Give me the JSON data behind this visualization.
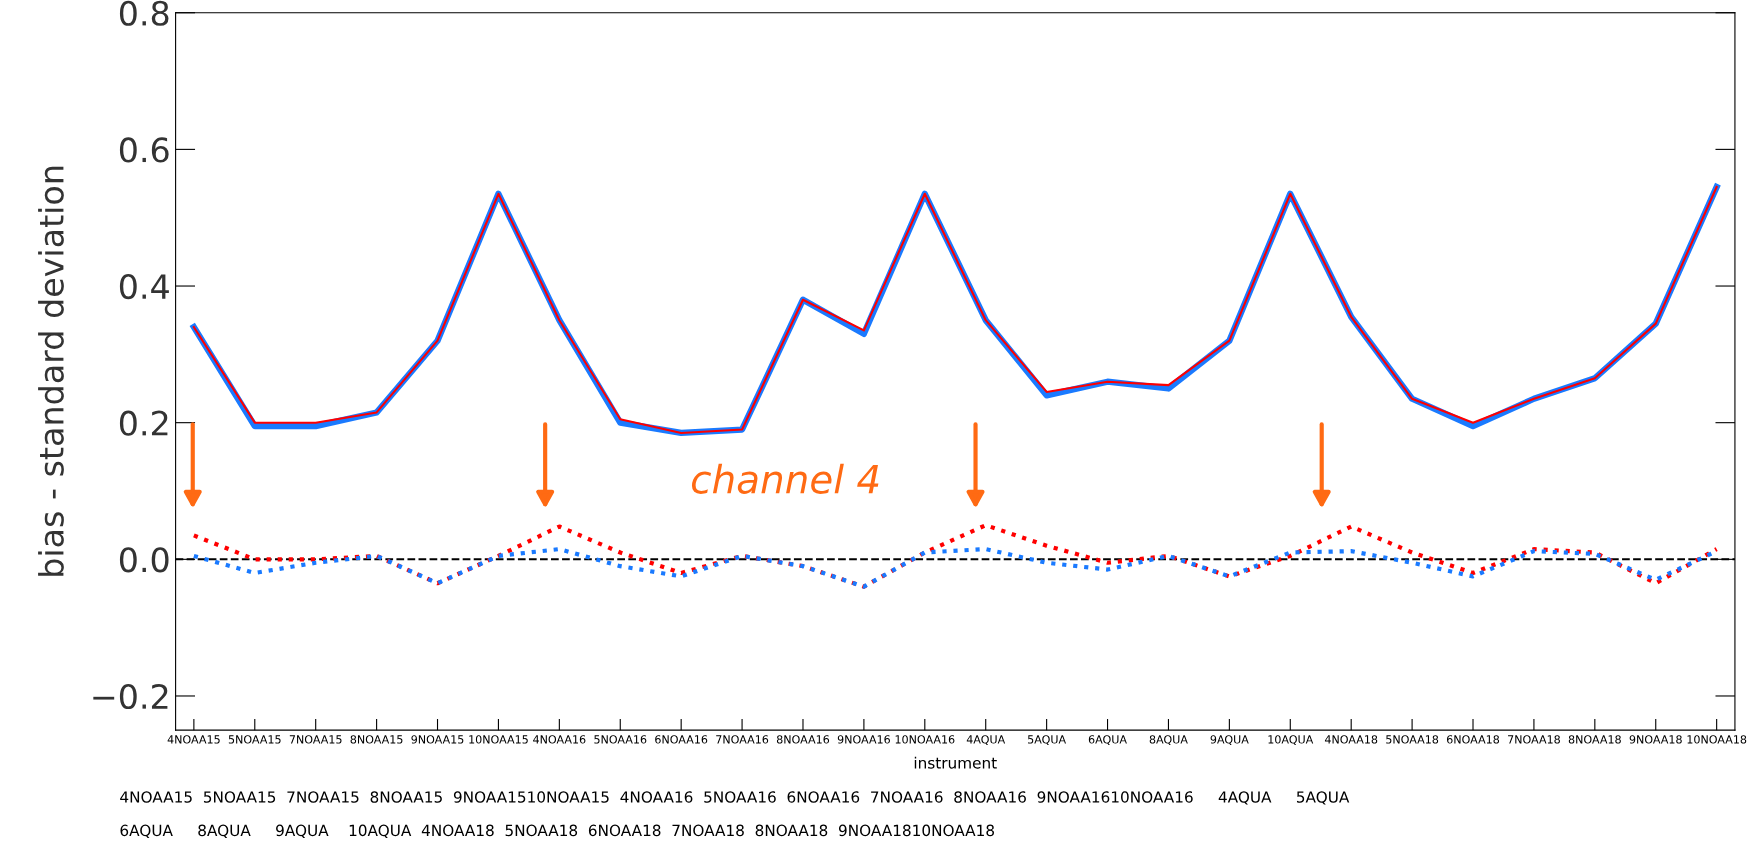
{
  "chart_data": {
    "type": "line",
    "ylabel": "bias - standard deviation",
    "xlabel": "instrument",
    "categories": [
      "4NOAA15",
      "5NOAA15",
      "7NOAA15",
      "8NOAA15",
      "9NOAA15",
      "10NOAA15",
      "4NOAA16",
      "5NOAA16",
      "6NOAA16",
      "7NOAA16",
      "8NOAA16",
      "9NOAA16",
      "10NOAA16",
      "4AQUA",
      "5AQUA",
      "6AQUA",
      "8AQUA",
      "9AQUA",
      "10AQUA",
      "4NOAA18",
      "5NOAA18",
      "6NOAA18",
      "7NOAA18",
      "8NOAA18",
      "9NOAA18",
      "10NOAA18"
    ],
    "series": [
      {
        "color": "#ff0000",
        "line_style": "solid",
        "values": [
          0.34,
          0.2,
          0.2,
          0.215,
          0.32,
          0.535,
          0.35,
          0.205,
          0.185,
          0.19,
          0.38,
          0.335,
          0.535,
          0.35,
          0.245,
          0.26,
          0.255,
          0.32,
          0.535,
          0.355,
          0.235,
          0.2,
          0.235,
          0.265,
          0.345,
          0.545
        ]
      },
      {
        "color": "#1a7aff",
        "line_style": "solid",
        "values": [
          0.34,
          0.195,
          0.195,
          0.215,
          0.32,
          0.535,
          0.35,
          0.2,
          0.185,
          0.19,
          0.38,
          0.33,
          0.535,
          0.35,
          0.24,
          0.26,
          0.25,
          0.32,
          0.535,
          0.355,
          0.235,
          0.195,
          0.235,
          0.265,
          0.345,
          0.545
        ]
      },
      {
        "color": "#ff0000",
        "line_style": "dotted",
        "values": [
          0.035,
          0.0,
          0.0,
          0.005,
          -0.035,
          0.005,
          0.048,
          0.01,
          -0.02,
          0.005,
          -0.01,
          -0.04,
          0.01,
          0.05,
          0.02,
          -0.005,
          0.005,
          -0.025,
          0.005,
          0.048,
          0.01,
          -0.02,
          0.015,
          0.01,
          -0.035,
          0.015
        ]
      },
      {
        "color": "#1a7aff",
        "line_style": "dotted",
        "values": [
          0.005,
          -0.02,
          -0.005,
          0.005,
          -0.035,
          0.005,
          0.015,
          -0.01,
          -0.025,
          0.005,
          -0.01,
          -0.04,
          0.01,
          0.015,
          -0.005,
          -0.015,
          0.005,
          -0.025,
          0.01,
          0.012,
          -0.005,
          -0.025,
          0.012,
          0.008,
          -0.03,
          0.012
        ]
      }
    ],
    "ylim": [
      -0.25,
      0.8
    ],
    "yticks": [
      {
        "value": -0.2,
        "label": "−0.2"
      },
      {
        "value": 0.0,
        "label": "0.0"
      },
      {
        "value": 0.2,
        "label": "0.2"
      },
      {
        "value": 0.4,
        "label": "0.4"
      },
      {
        "value": 0.6,
        "label": "0.6"
      },
      {
        "value": 0.8,
        "label": "0.8"
      }
    ],
    "ref_lines": [
      {
        "axis": "y",
        "value": 0,
        "color": "#000000",
        "line_style": "dashed"
      }
    ],
    "grid": false,
    "legend": false,
    "marker": "none",
    "annotations": [
      "channel 4",
      "4NOAA15  5NOAA15  7NOAA15  8NOAA15  9NOAA1510NOAA15  4NOAA16  5NOAA16  6NOAA16  7NOAA16  8NOAA16  9NOAA1610NOAA16     4AQUA     5AQUA\n6AQUA     8AQUA     9AQUA    10AQUA  4NOAA18  5NOAA18  6NOAA18  7NOAA18  8NOAA18  9NOAA1810NOAA18"
    ]
  }
}
